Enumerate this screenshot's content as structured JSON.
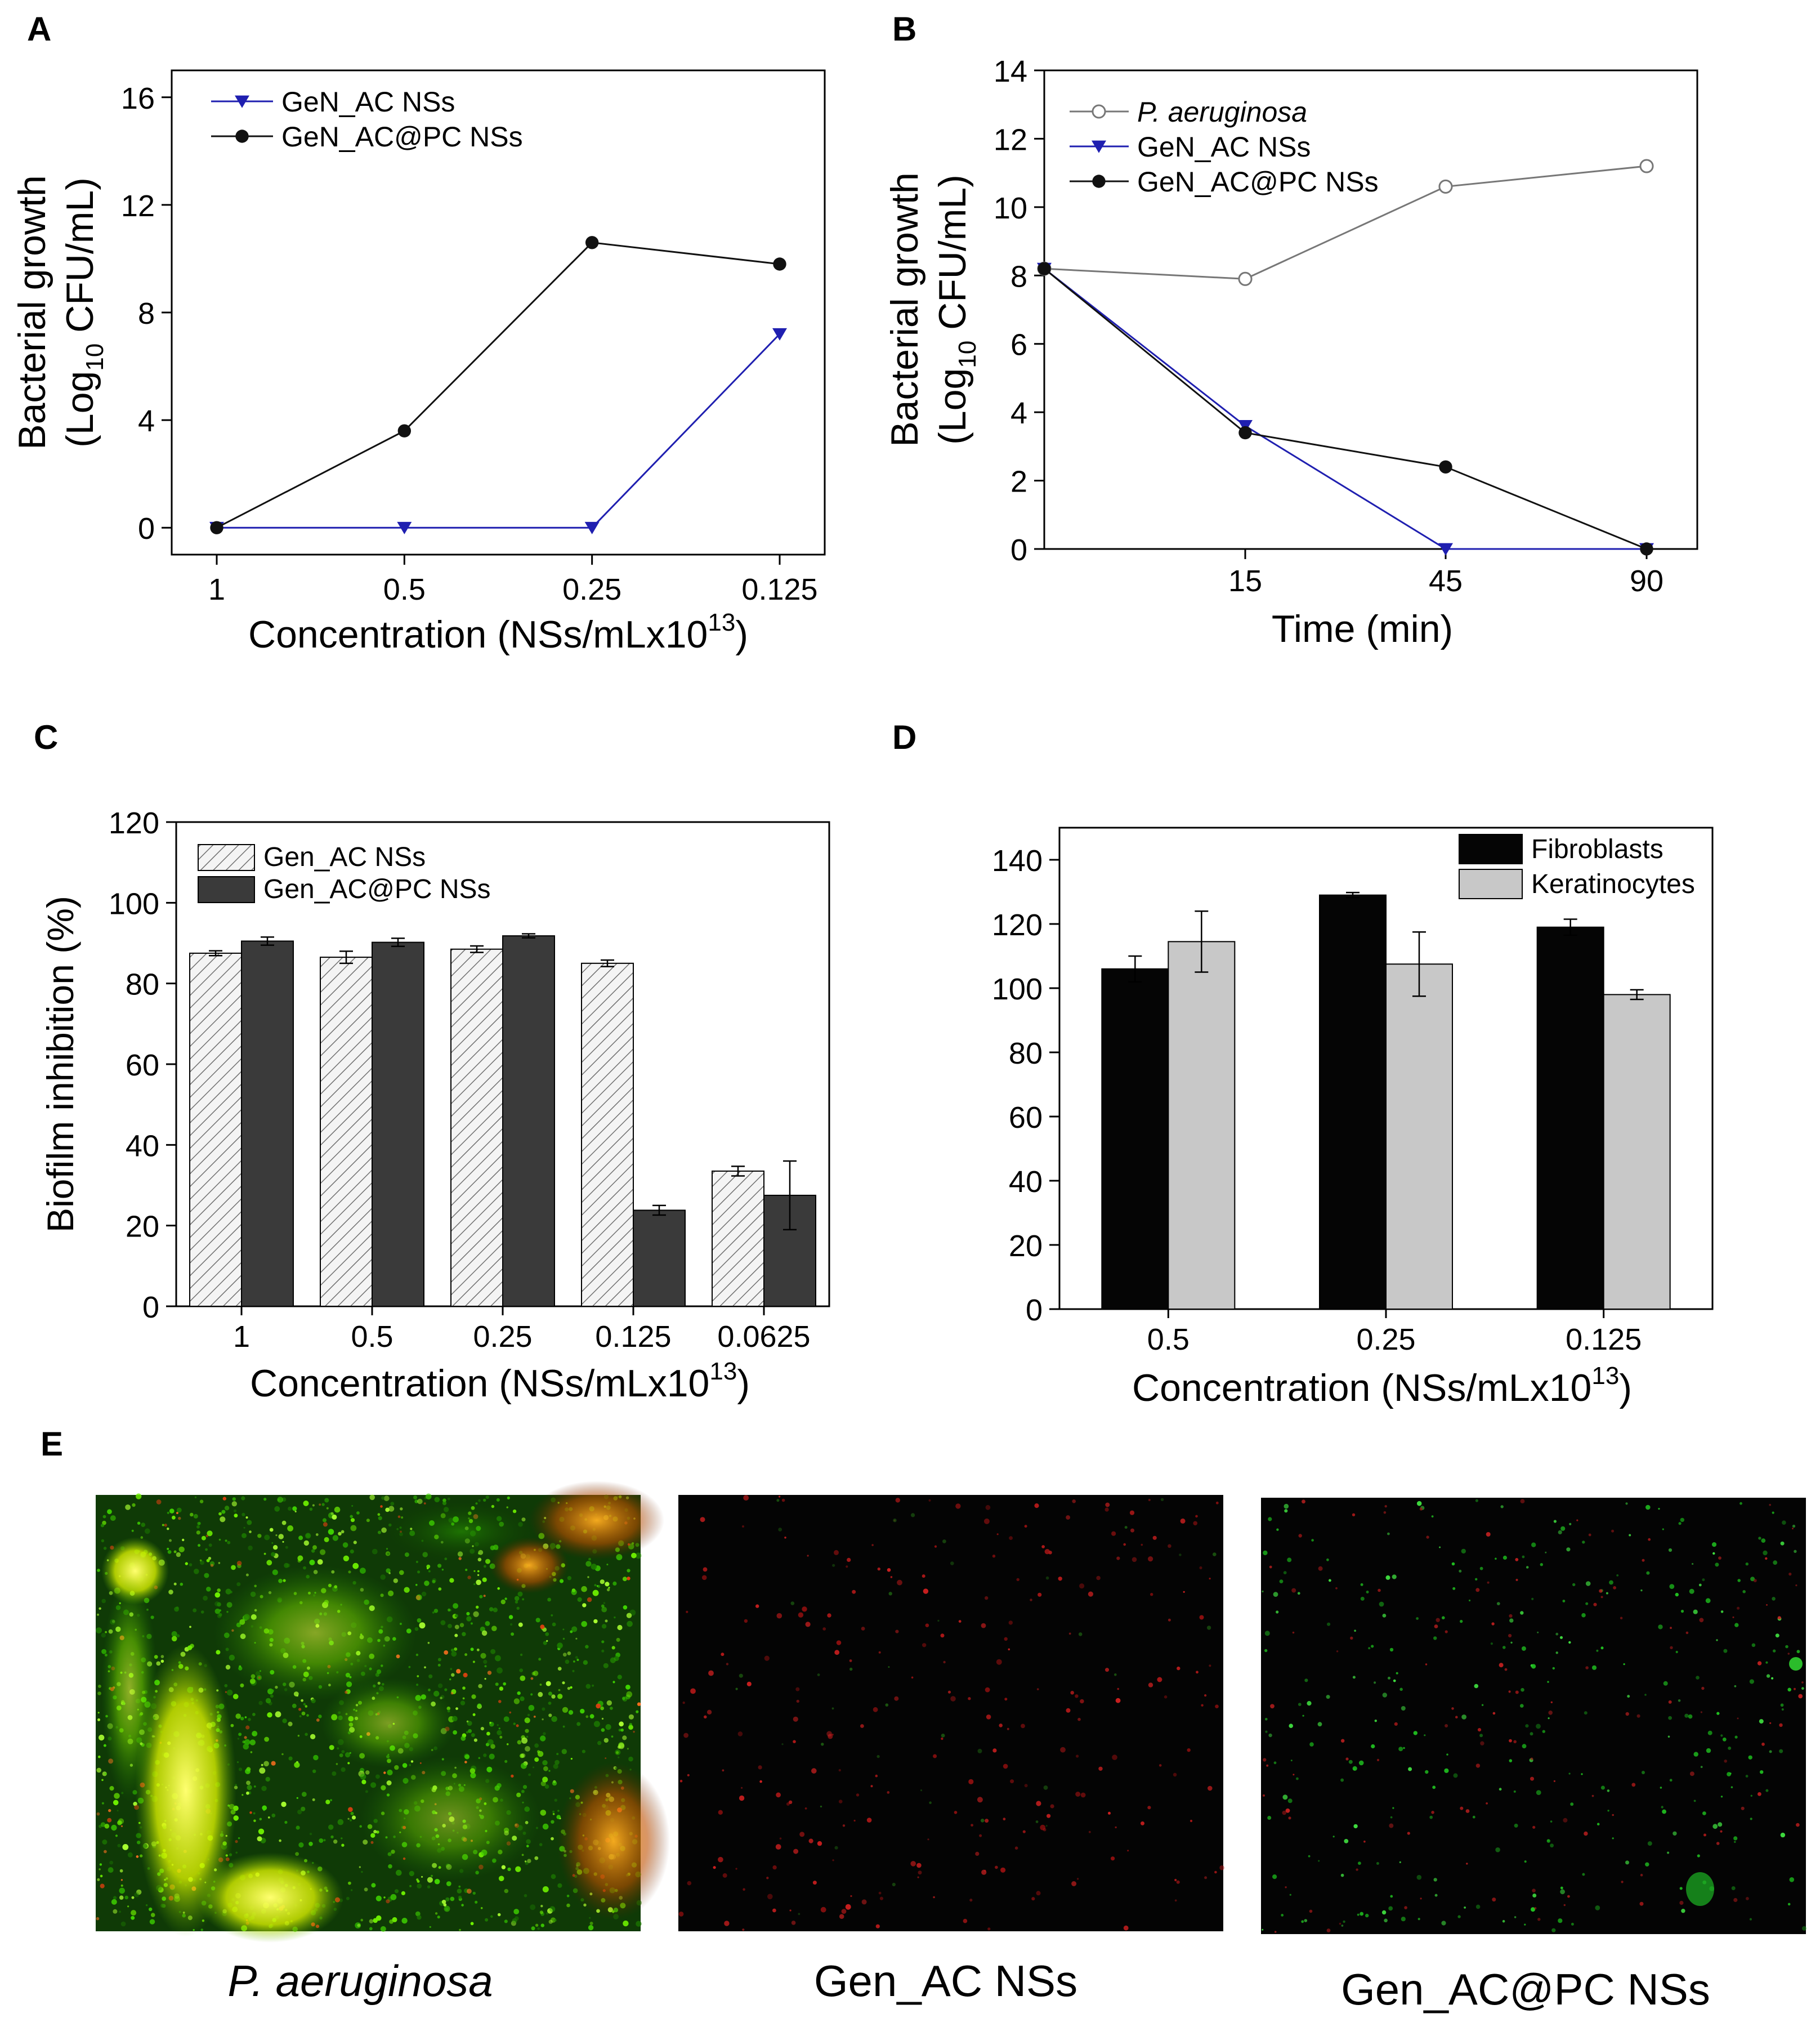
{
  "panels": {
    "A": {
      "letter": "A",
      "chart_data": {
        "type": "line",
        "categories": [
          "1",
          "0.5",
          "0.25",
          "0.125"
        ],
        "series": [
          {
            "name": "GeN_AC NSs",
            "values": [
              0,
              0,
              0,
              7.2
            ],
            "color": "#1f1fb0",
            "marker": "triangle-down"
          },
          {
            "name": "GeN_AC@PC NSs",
            "values": [
              0,
              3.6,
              10.6,
              9.8
            ],
            "color": "#111111",
            "marker": "circle"
          }
        ],
        "ylim": [
          -1,
          17
        ],
        "yticks": [
          0,
          4,
          8,
          12,
          16
        ],
        "ylabel_line1": "Bacterial growth",
        "ylabel_line2_prefix": "(Log",
        "ylabel_sub": "10",
        "ylabel_line2_suffix": " CFU/mL)",
        "xlabel": "Concentration (NSs/mLx10",
        "xlabel_sup": "13",
        "xlabel_close": ")",
        "legend_position": "top-left"
      }
    },
    "B": {
      "letter": "B",
      "chart_data": {
        "type": "line",
        "x": [
          0,
          15,
          45,
          90
        ],
        "xtick_labels": [
          "15",
          "45",
          "90"
        ],
        "series": [
          {
            "name": "P. aeruginosa",
            "values": [
              8.2,
              7.9,
              10.6,
              11.2
            ],
            "color": "#777777",
            "marker": "open-circle",
            "italic": true
          },
          {
            "name": "GeN_AC NSs",
            "values": [
              8.2,
              3.6,
              0,
              0
            ],
            "color": "#1f1fb0",
            "marker": "triangle-down"
          },
          {
            "name": "GeN_AC@PC NSs",
            "values": [
              8.2,
              3.4,
              2.4,
              0
            ],
            "color": "#111111",
            "marker": "circle"
          }
        ],
        "ylim": [
          0,
          14
        ],
        "yticks": [
          0,
          2,
          4,
          6,
          8,
          10,
          12,
          14
        ],
        "ylabel_line1": "Bacterial growth",
        "ylabel_line2_prefix": "(Log",
        "ylabel_sub": "10",
        "ylabel_line2_suffix": " CFU/mL)",
        "xlabel": "Time (min)",
        "legend_position": "top-left"
      }
    },
    "C": {
      "letter": "C",
      "chart_data": {
        "type": "bar",
        "categories": [
          "1",
          "0.5",
          "0.25",
          "0.125",
          "0.0625"
        ],
        "series": [
          {
            "name": "Gen_AC NSs",
            "values": [
              87.5,
              86.5,
              88.5,
              85,
              33.5
            ],
            "errors": [
              0.6,
              1.5,
              0.8,
              0.8,
              1.2
            ],
            "fill": "hatched"
          },
          {
            "name": "Gen_AC@PC NSs",
            "values": [
              90.5,
              90.2,
              91.8,
              23.8,
              27.5
            ],
            "errors": [
              1.0,
              1.0,
              0.5,
              1.2,
              8.5
            ],
            "fill": "#3a3a3a"
          }
        ],
        "ylim": [
          0,
          120
        ],
        "yticks": [
          0,
          20,
          40,
          60,
          80,
          100,
          120
        ],
        "ylabel": "Biofilm inhibition (%)",
        "xlabel": "Concentration (NSs/mLx10",
        "xlabel_sup": "13",
        "xlabel_close": ")",
        "legend_position": "top-left"
      }
    },
    "D": {
      "letter": "D",
      "chart_data": {
        "type": "bar",
        "categories": [
          "0.5",
          "0.25",
          "0.125"
        ],
        "series": [
          {
            "name": "Fibroblasts",
            "values": [
              106,
              129,
              119
            ],
            "errors": [
              4,
              0.8,
              2.5
            ],
            "fill": "#050505"
          },
          {
            "name": "Keratinocytes",
            "values": [
              114.5,
              107.5,
              98
            ],
            "errors": [
              9.5,
              10,
              1.5
            ],
            "fill": "#c8c8c8"
          }
        ],
        "ylim": [
          0,
          150
        ],
        "yticks": [
          0,
          20,
          40,
          60,
          80,
          100,
          120,
          140
        ],
        "xlabel": "Concentration (NSs/mLx10",
        "xlabel_sup": "13",
        "xlabel_close": ")",
        "legend_position": "top-right"
      }
    },
    "E": {
      "letter": "E",
      "images": [
        {
          "caption": "P. aeruginosa",
          "italic": true,
          "style": "dense-green-biofilm"
        },
        {
          "caption": "Gen_AC NSs",
          "italic": false,
          "style": "sparse-red"
        },
        {
          "caption": "Gen_AC@PC NSs",
          "italic": false,
          "style": "sparse-green-red"
        }
      ]
    }
  },
  "colors": {
    "blue": "#1f1fb0",
    "black": "#111111",
    "gray": "#777777"
  }
}
